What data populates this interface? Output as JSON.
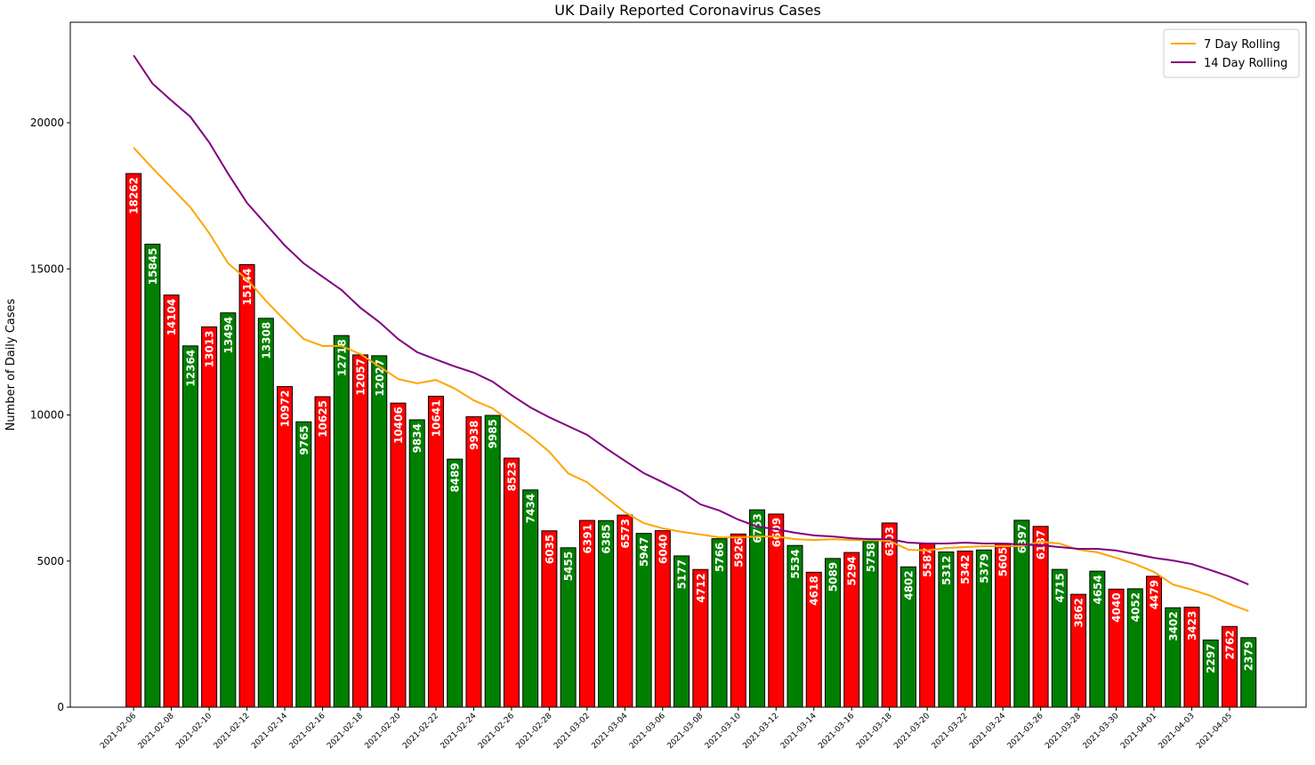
{
  "chart_data": {
    "type": "bar",
    "title": "UK Daily Reported Coronavirus Cases",
    "y_label": "Number of Daily Cases",
    "categories": [
      "2021-02-06",
      null,
      "2021-02-08",
      null,
      "2021-02-10",
      null,
      "2021-02-12",
      null,
      "2021-02-14",
      null,
      "2021-02-16",
      null,
      "2021-02-18",
      null,
      "2021-02-20",
      null,
      "2021-02-22",
      null,
      "2021-02-24",
      null,
      "2021-02-26",
      null,
      "2021-02-28",
      null,
      "2021-03-02",
      null,
      "2021-03-04",
      null,
      "2021-03-06",
      null,
      "2021-03-08",
      null,
      "2021-03-10",
      null,
      "2021-03-12",
      null,
      "2021-03-14",
      null,
      "2021-03-16",
      null,
      "2021-03-18",
      null,
      "2021-03-20",
      null,
      "2021-03-22",
      null,
      "2021-03-24",
      null,
      "2021-03-26",
      null,
      "2021-03-28",
      null,
      "2021-03-30",
      null,
      "2021-04-01",
      null,
      "2021-04-03",
      null,
      "2021-04-05",
      null
    ],
    "values": [
      18262,
      15845,
      14104,
      12364,
      13013,
      13494,
      15144,
      13308,
      10972,
      9765,
      10625,
      12718,
      12057,
      12027,
      10406,
      9834,
      10641,
      8489,
      9938,
      9985,
      8523,
      7434,
      6035,
      5455,
      6391,
      6385,
      6573,
      5947,
      6040,
      5177,
      4712,
      5766,
      5926,
      6753,
      6609,
      5534,
      4618,
      5089,
      5294,
      5758,
      6303,
      4802,
      5587,
      5312,
      5342,
      5379,
      5605,
      6397,
      6187,
      4715,
      3862,
      4654,
      4040,
      4052,
      4479,
      3402,
      3423,
      2297,
      2762,
      2379
    ],
    "bar_colors": [
      "#ff0000",
      "#008000"
    ],
    "lines": [
      {
        "name": "7 Day Rolling",
        "color": "#ffa500",
        "values": [
          19150,
          18450,
          17780,
          17110,
          16225,
          15190,
          14640,
          13910,
          13240,
          12600,
          12360,
          12360,
          12085,
          11660,
          11230,
          11080,
          11200,
          10900,
          10500,
          10230,
          9740,
          9280,
          8740,
          8000,
          7700,
          7180,
          6670,
          6300,
          6120,
          6000,
          5910,
          5810,
          5810,
          5840,
          5840,
          5750,
          5720,
          5750,
          5720,
          5720,
          5690,
          5390,
          5360,
          5450,
          5480,
          5510,
          5510,
          5510,
          5660,
          5600,
          5390,
          5300,
          5110,
          4900,
          4630,
          4200,
          4020,
          3810,
          3530,
          3290
        ]
      },
      {
        "name": "14 Day Rolling",
        "color": "#800080",
        "values": [
          22310,
          21340,
          20760,
          20210,
          19330,
          18260,
          17260,
          16530,
          15800,
          15190,
          14730,
          14280,
          13670,
          13180,
          12600,
          12150,
          11900,
          11660,
          11450,
          11140,
          10680,
          10260,
          9920,
          9620,
          9320,
          8860,
          8430,
          8010,
          7700,
          7370,
          6940,
          6730,
          6420,
          6180,
          6090,
          5970,
          5880,
          5840,
          5780,
          5750,
          5750,
          5630,
          5600,
          5600,
          5630,
          5600,
          5600,
          5570,
          5540,
          5480,
          5420,
          5420,
          5360,
          5240,
          5110,
          5020,
          4900,
          4690,
          4470,
          4200
        ]
      }
    ],
    "ylim": [
      0,
      23440
    ],
    "yticks": [
      0,
      5000,
      10000,
      15000,
      20000
    ],
    "grid": false,
    "legend": "upper right"
  }
}
